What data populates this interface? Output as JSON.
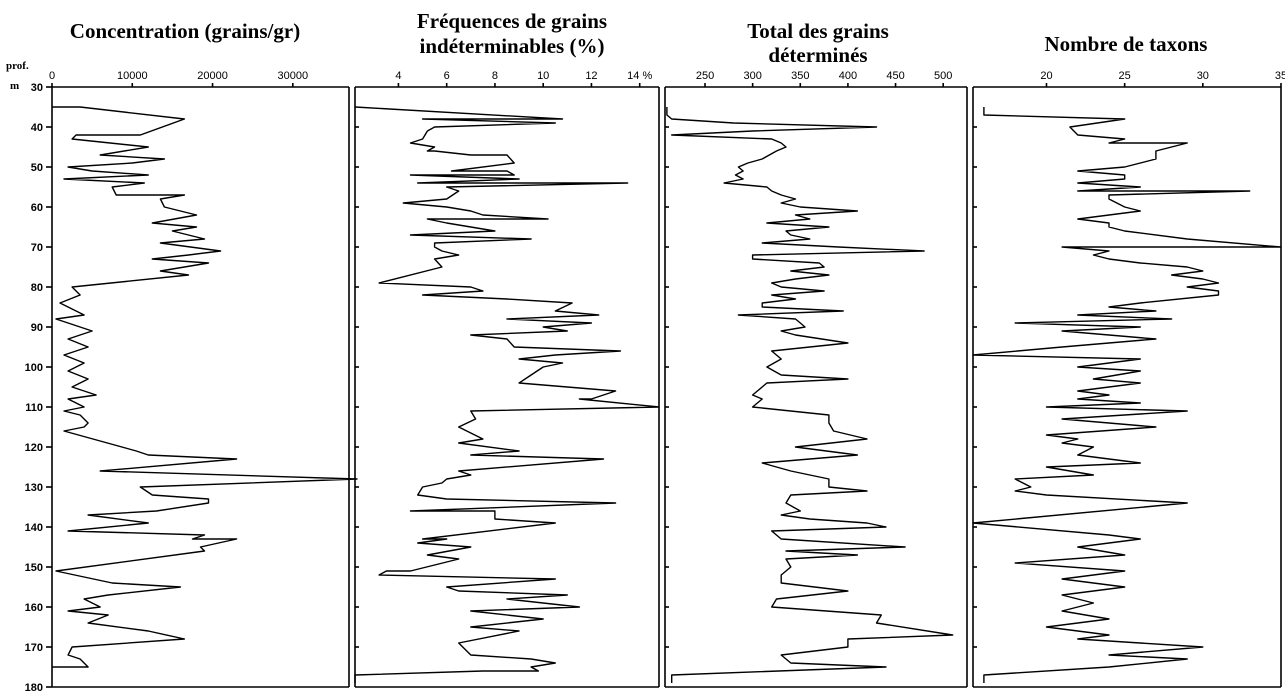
{
  "depth_axis": {
    "header_top": "prof.",
    "header_unit": "m",
    "range": [
      30,
      180
    ],
    "ticks": [
      30,
      40,
      50,
      60,
      70,
      80,
      90,
      100,
      110,
      120,
      130,
      140,
      150,
      160,
      170,
      180
    ]
  },
  "chart_data": [
    {
      "type": "line",
      "title": "Concentration (grains/gr)",
      "orientation": "depth-vertical",
      "xlim": [
        0,
        37000
      ],
      "x_ticks": [
        0,
        10000,
        20000,
        30000
      ],
      "x_tick_labels": [
        "0",
        "10000",
        "20000",
        "30000"
      ],
      "series": [
        {
          "x": [
            0,
            3500,
            16500,
            11000,
            3000,
            2500,
            12000,
            6000,
            14000,
            10000,
            2000,
            5000,
            12000,
            1500,
            11500,
            7500,
            8000,
            16500,
            13500,
            14000,
            18000,
            12500,
            18000,
            15000,
            19000,
            13500,
            21000,
            17000,
            12500,
            19500,
            13500,
            17000,
            2500,
            3500,
            1000,
            3000,
            4000,
            500,
            2000,
            5000,
            2000,
            4500,
            1500,
            4000,
            2000,
            4500,
            2500,
            5500,
            2000,
            4000,
            1500,
            3500,
            4000,
            4500,
            4000,
            1500,
            10500,
            12000,
            23000,
            6000,
            38000,
            11000,
            12500,
            19500,
            19500,
            13000,
            4500,
            12000,
            2000,
            19000,
            17500,
            23000,
            18500,
            19000,
            500,
            7500,
            16000,
            7000,
            4000,
            6000,
            2000,
            7000,
            4500,
            12000,
            16500,
            2500,
            2000,
            3500,
            4500,
            0
          ],
          "y": [
            35,
            35,
            38,
            42,
            42,
            43,
            45,
            47,
            48,
            49,
            50,
            51,
            52,
            53,
            54,
            55,
            57,
            57,
            58,
            60,
            62,
            64,
            65,
            66,
            68,
            69,
            71,
            72,
            73,
            74,
            76,
            77,
            80,
            82,
            84,
            86,
            87,
            88,
            89,
            91,
            93,
            95,
            97,
            99,
            101,
            103,
            105,
            107,
            108,
            110,
            111,
            112,
            113,
            114,
            115,
            116,
            121,
            122,
            123,
            126,
            128,
            130,
            132,
            133,
            134,
            136,
            137,
            139,
            141,
            142,
            143,
            143,
            145,
            146,
            151,
            154,
            155,
            157,
            158,
            160,
            161,
            162,
            164,
            166,
            168,
            170,
            172,
            173,
            175,
            175
          ]
        }
      ]
    },
    {
      "type": "line",
      "title": "Fréquences de grains indéterminables (%)",
      "orientation": "depth-vertical",
      "xlim": [
        2.2,
        14.8
      ],
      "x_ticks": [
        4,
        6,
        8,
        10,
        12,
        14
      ],
      "x_tick_labels": [
        "4",
        "6",
        "8",
        "10",
        "12",
        "14 %"
      ],
      "series": [
        {
          "x": [
            2.2,
            2.2,
            10.8,
            5.0,
            10.5,
            5.5,
            5.2,
            5.0,
            4.5,
            5.5,
            5.2,
            5.5,
            7.0,
            8.5,
            8.8,
            6.2,
            8.5,
            8.8,
            4.5,
            9.0,
            4.8,
            13.5,
            6.0,
            6.5,
            6.0,
            4.2,
            6.0,
            7.0,
            7.5,
            10.2,
            5.2,
            6.0,
            7.0,
            8.0,
            4.5,
            9.5,
            5.5,
            5.5,
            5.8,
            6.5,
            5.5,
            5.8,
            3.2,
            7.0,
            7.5,
            5.0,
            8.5,
            11.2,
            10.5,
            12.3,
            8.5,
            12.0,
            10.0,
            11.0,
            7.0,
            8.5,
            8.8,
            13.2,
            10.5,
            9.0,
            10.8,
            10.0,
            9.5,
            9.0,
            13.0,
            12.0,
            11.5,
            14.8,
            7.0,
            7.2,
            6.5,
            7.5,
            6.5,
            9.0,
            7.0,
            12.5,
            6.5,
            7.0,
            6.0,
            5.8,
            5.0,
            4.8,
            6.0,
            13.0,
            4.5,
            8.0,
            8.0,
            10.5,
            5.0,
            6.0,
            4.8,
            7.0,
            5.2,
            6.5,
            4.5,
            3.5,
            3.2,
            10.5,
            6.0,
            6.5,
            11.0,
            8.5,
            11.5,
            7.0,
            10.0,
            7.0,
            9.0,
            6.5,
            7.0,
            9.5,
            10.5,
            9.5,
            9.8,
            7.5,
            2.2,
            2.2
          ],
          "y": [
            35,
            35,
            38,
            38,
            39,
            40,
            41,
            43,
            44,
            45,
            46,
            46,
            47,
            47,
            49,
            51,
            51,
            52,
            52,
            53,
            54,
            54,
            55,
            56,
            58,
            59,
            60,
            61,
            62,
            63,
            63,
            64,
            65,
            66,
            67,
            68,
            69,
            70,
            71,
            72,
            73,
            75,
            79,
            80,
            81,
            82,
            83,
            84,
            86,
            87,
            88,
            89,
            90,
            91,
            92,
            93,
            95,
            96,
            97,
            98,
            99,
            100,
            102,
            104,
            106,
            108,
            108,
            110,
            111,
            113,
            115,
            118,
            119,
            121,
            122,
            123,
            126,
            127,
            128,
            129,
            130,
            132,
            133,
            134,
            136,
            136,
            138,
            139,
            143,
            143,
            144,
            145,
            147,
            148,
            151,
            151,
            152,
            153,
            155,
            156,
            157,
            158,
            160,
            161,
            163,
            165,
            166,
            169,
            172,
            173,
            174,
            175,
            176,
            176,
            177,
            179
          ]
        }
      ]
    },
    {
      "type": "line",
      "title": "Total des grains déterminés",
      "orientation": "depth-vertical",
      "xlim": [
        208,
        525
      ],
      "x_ticks": [
        250,
        300,
        350,
        400,
        450,
        500
      ],
      "x_tick_labels": [
        "250",
        "300",
        "350",
        "400",
        "450",
        "500"
      ],
      "series": [
        {
          "x": [
            210,
            210,
            215,
            280,
            430,
            300,
            215,
            320,
            330,
            335,
            325,
            310,
            295,
            285,
            290,
            282,
            290,
            270,
            315,
            320,
            330,
            345,
            330,
            350,
            410,
            345,
            360,
            315,
            380,
            335,
            340,
            360,
            310,
            390,
            480,
            300,
            300,
            370,
            375,
            340,
            380,
            345,
            320,
            330,
            375,
            320,
            345,
            310,
            310,
            395,
            285,
            345,
            350,
            355,
            330,
            345,
            400,
            320,
            330,
            315,
            330,
            400,
            315,
            305,
            300,
            310,
            300,
            380,
            380,
            385,
            420,
            345,
            410,
            310,
            340,
            380,
            380,
            420,
            340,
            335,
            350,
            330,
            360,
            420,
            440,
            320,
            330,
            460,
            335,
            410,
            335,
            340,
            330,
            330,
            400,
            325,
            320,
            435,
            430,
            510,
            400,
            400,
            330,
            340,
            440,
            215,
            215
          ],
          "y": [
            35,
            37,
            38,
            39,
            40,
            41,
            42,
            43,
            44,
            45,
            46,
            48,
            49,
            50,
            51,
            52,
            53,
            54,
            55,
            56,
            57,
            58,
            59,
            60,
            61,
            62,
            63,
            64,
            65,
            66,
            67,
            68,
            69,
            70,
            71,
            72,
            73,
            74,
            75,
            76,
            77,
            78,
            79,
            80,
            81,
            82,
            83,
            84,
            85,
            86,
            87,
            88,
            89,
            90,
            91,
            92,
            94,
            96,
            98,
            100,
            102,
            103,
            104,
            106,
            107,
            108,
            110,
            112,
            114,
            116,
            118,
            120,
            122,
            124,
            126,
            128,
            130,
            131,
            132,
            134,
            136,
            137,
            138,
            139,
            140,
            141,
            143,
            145,
            146,
            147,
            148,
            150,
            152,
            154,
            156,
            158,
            160,
            162,
            164,
            167,
            168,
            170,
            172,
            174,
            175,
            177,
            179
          ]
        }
      ]
    },
    {
      "type": "line",
      "title": "Nombre de taxons",
      "orientation": "depth-vertical",
      "xlim": [
        15.3,
        35
      ],
      "x_ticks": [
        20,
        25,
        30,
        35
      ],
      "x_tick_labels": [
        "20",
        "25",
        "30",
        "35"
      ],
      "series": [
        {
          "x": [
            16,
            16,
            25,
            21.5,
            22,
            25,
            24,
            29,
            27,
            27,
            25,
            22,
            25,
            25,
            22,
            26,
            22,
            33,
            24,
            24,
            25,
            26,
            22,
            24,
            24,
            25,
            29,
            35,
            21,
            24,
            23,
            24,
            26,
            29,
            30,
            28,
            30,
            31,
            29,
            31,
            31,
            26,
            24,
            27,
            22,
            28,
            18,
            26,
            21,
            27,
            21,
            15.3,
            26,
            22,
            26,
            23,
            26,
            22,
            24,
            22,
            26,
            20,
            29,
            21,
            27,
            20,
            22,
            21,
            23,
            22,
            26,
            20,
            23,
            18,
            19,
            18,
            20,
            29,
            15.3,
            24,
            26,
            22,
            25,
            18,
            25,
            21,
            25,
            21,
            23,
            21,
            24,
            20,
            24,
            22,
            30,
            24,
            29,
            24,
            16,
            16
          ],
          "y": [
            35,
            37,
            38,
            40,
            42,
            43,
            44,
            44,
            46,
            48,
            50,
            51,
            52,
            53,
            54,
            55,
            56,
            56,
            57,
            58,
            60,
            61,
            63,
            64,
            65,
            66,
            68,
            70,
            70,
            71,
            72,
            73,
            74,
            75,
            76,
            77,
            78,
            79,
            80,
            81,
            82,
            84,
            85,
            86,
            87,
            88,
            89,
            90,
            91,
            93,
            95,
            97,
            98,
            100,
            101,
            103,
            104,
            106,
            107,
            108,
            109,
            110,
            111,
            113,
            115,
            117,
            118,
            119,
            120,
            122,
            124,
            125,
            127,
            128,
            130,
            131,
            132,
            134,
            139,
            142,
            143,
            145,
            147,
            149,
            151,
            153,
            155,
            157,
            159,
            161,
            163,
            165,
            167,
            168,
            170,
            172,
            173,
            175,
            177,
            179
          ]
        }
      ]
    }
  ]
}
